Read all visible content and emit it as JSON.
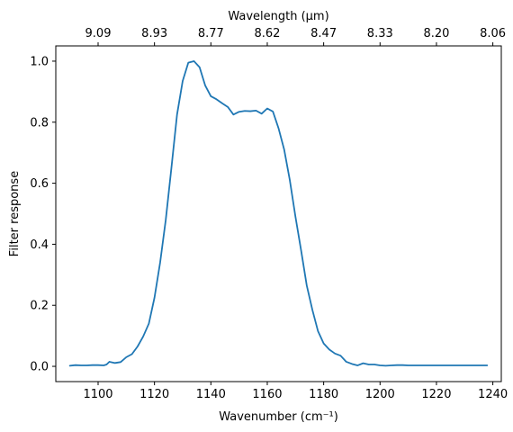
{
  "chart_data": {
    "type": "line",
    "xlabel": "Wavenumber (cm⁻¹)",
    "ylabel": "Filter response",
    "top_xlabel": "Wavelength (μm)",
    "xlim": [
      1085,
      1243
    ],
    "ylim": [
      -0.05,
      1.05
    ],
    "x_ticks": [
      1100,
      1120,
      1140,
      1160,
      1180,
      1200,
      1220,
      1240
    ],
    "y_ticks": [
      0.0,
      0.2,
      0.4,
      0.6,
      0.8,
      1.0
    ],
    "top_ticks": [
      {
        "wavenumber": 1100,
        "label": "9.09"
      },
      {
        "wavenumber": 1120,
        "label": "8.93"
      },
      {
        "wavenumber": 1140,
        "label": "8.77"
      },
      {
        "wavenumber": 1160,
        "label": "8.62"
      },
      {
        "wavenumber": 1180,
        "label": "8.47"
      },
      {
        "wavenumber": 1200,
        "label": "8.33"
      },
      {
        "wavenumber": 1220,
        "label": "8.20"
      },
      {
        "wavenumber": 1240,
        "label": "8.06"
      }
    ],
    "grid": false,
    "series": [
      {
        "color": "#1f77b4",
        "x": [
          1090,
          1092,
          1094,
          1096,
          1098,
          1100,
          1102,
          1103,
          1104,
          1106,
          1108,
          1110,
          1112,
          1114,
          1116,
          1118,
          1120,
          1122,
          1124,
          1126,
          1128,
          1130,
          1132,
          1134,
          1136,
          1138,
          1140,
          1142,
          1144,
          1146,
          1148,
          1150,
          1152,
          1154,
          1156,
          1158,
          1160,
          1162,
          1164,
          1166,
          1168,
          1170,
          1172,
          1174,
          1176,
          1178,
          1180,
          1182,
          1184,
          1186,
          1188,
          1190,
          1192,
          1194,
          1196,
          1198,
          1200,
          1202,
          1204,
          1206,
          1208,
          1210,
          1212,
          1214,
          1216,
          1218,
          1220,
          1225,
          1230,
          1235,
          1238
        ],
        "y": [
          0.002,
          0.004,
          0.003,
          0.003,
          0.004,
          0.004,
          0.003,
          0.006,
          0.015,
          0.011,
          0.014,
          0.03,
          0.04,
          0.065,
          0.098,
          0.14,
          0.225,
          0.34,
          0.48,
          0.65,
          0.825,
          0.935,
          0.995,
          1.0,
          0.98,
          0.92,
          0.885,
          0.875,
          0.862,
          0.85,
          0.825,
          0.834,
          0.837,
          0.836,
          0.838,
          0.828,
          0.845,
          0.835,
          0.78,
          0.71,
          0.61,
          0.49,
          0.38,
          0.265,
          0.185,
          0.115,
          0.075,
          0.055,
          0.042,
          0.035,
          0.015,
          0.008,
          0.003,
          0.01,
          0.006,
          0.006,
          0.003,
          0.002,
          0.003,
          0.004,
          0.004,
          0.003,
          0.003,
          0.003,
          0.003,
          0.003,
          0.003,
          0.003,
          0.003,
          0.003,
          0.003
        ]
      }
    ]
  }
}
